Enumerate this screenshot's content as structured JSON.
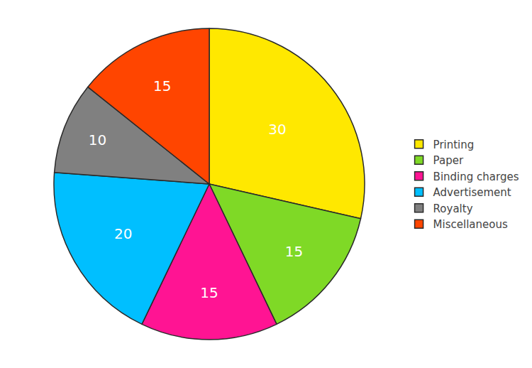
{
  "chart_data": {
    "type": "pie",
    "categories": [
      "Printing",
      "Paper",
      "Binding charges",
      "Advertisement",
      "Royalty",
      "Miscellaneous"
    ],
    "values": [
      30,
      15,
      15,
      20,
      10,
      15
    ],
    "colors": [
      "#FFE800",
      "#7FD926",
      "#FF1493",
      "#00BFFF",
      "#808080",
      "#FF4500"
    ],
    "data_labels": true,
    "legend": "right"
  }
}
